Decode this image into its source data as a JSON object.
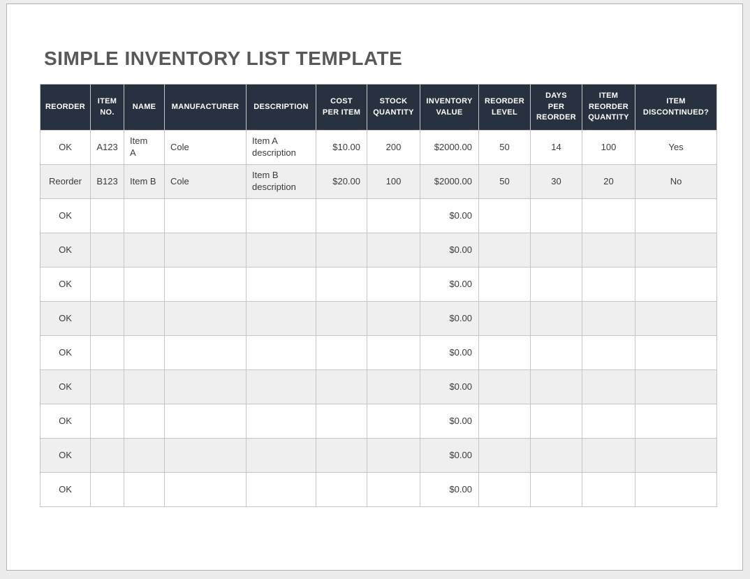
{
  "page": {
    "title": "SIMPLE INVENTORY LIST TEMPLATE"
  },
  "colors": {
    "canvas_bg": "#ececec",
    "page_bg": "#ffffff",
    "page_border": "#b2b2b2",
    "header_bg": "#273140",
    "header_text": "#ffffff",
    "row_alt_bg": "#efefef",
    "body_text": "#3b3b3b",
    "title_color": "#595959",
    "grid_border": "#c6c6c6",
    "outer_border": "#a9a9a9"
  },
  "table": {
    "columns": [
      "REORDER",
      "ITEM\nNO.",
      "NAME",
      "MANUFACTURER",
      "DESCRIPTION",
      "COST\nPER ITEM",
      "STOCK\nQUANTITY",
      "INVENTORY\nVALUE",
      "REORDER\nLEVEL",
      "DAYS\nPER\nREORDER",
      "ITEM\nREORDER\nQUANTITY",
      "ITEM\nDISCONTINUED?"
    ],
    "rows": [
      [
        "OK",
        "A123",
        "Item\nA",
        "Cole",
        "Item A description",
        "$10.00",
        "200",
        "$2000.00",
        "50",
        "14",
        "100",
        "Yes"
      ],
      [
        "Reorder",
        "B123",
        "Item B",
        "Cole",
        "Item B description",
        "$20.00",
        "100",
        "$2000.00",
        "50",
        "30",
        "20",
        "No"
      ],
      [
        "OK",
        "",
        "",
        "",
        "",
        "",
        "",
        "$0.00",
        "",
        "",
        "",
        ""
      ],
      [
        "OK",
        "",
        "",
        "",
        "",
        "",
        "",
        "$0.00",
        "",
        "",
        "",
        ""
      ],
      [
        "OK",
        "",
        "",
        "",
        "",
        "",
        "",
        "$0.00",
        "",
        "",
        "",
        ""
      ],
      [
        "OK",
        "",
        "",
        "",
        "",
        "",
        "",
        "$0.00",
        "",
        "",
        "",
        ""
      ],
      [
        "OK",
        "",
        "",
        "",
        "",
        "",
        "",
        "$0.00",
        "",
        "",
        "",
        ""
      ],
      [
        "OK",
        "",
        "",
        "",
        "",
        "",
        "",
        "$0.00",
        "",
        "",
        "",
        ""
      ],
      [
        "OK",
        "",
        "",
        "",
        "",
        "",
        "",
        "$0.00",
        "",
        "",
        "",
        ""
      ],
      [
        "OK",
        "",
        "",
        "",
        "",
        "",
        "",
        "$0.00",
        "",
        "",
        "",
        ""
      ],
      [
        "OK",
        "",
        "",
        "",
        "",
        "",
        "",
        "$0.00",
        "",
        "",
        "",
        ""
      ]
    ]
  }
}
